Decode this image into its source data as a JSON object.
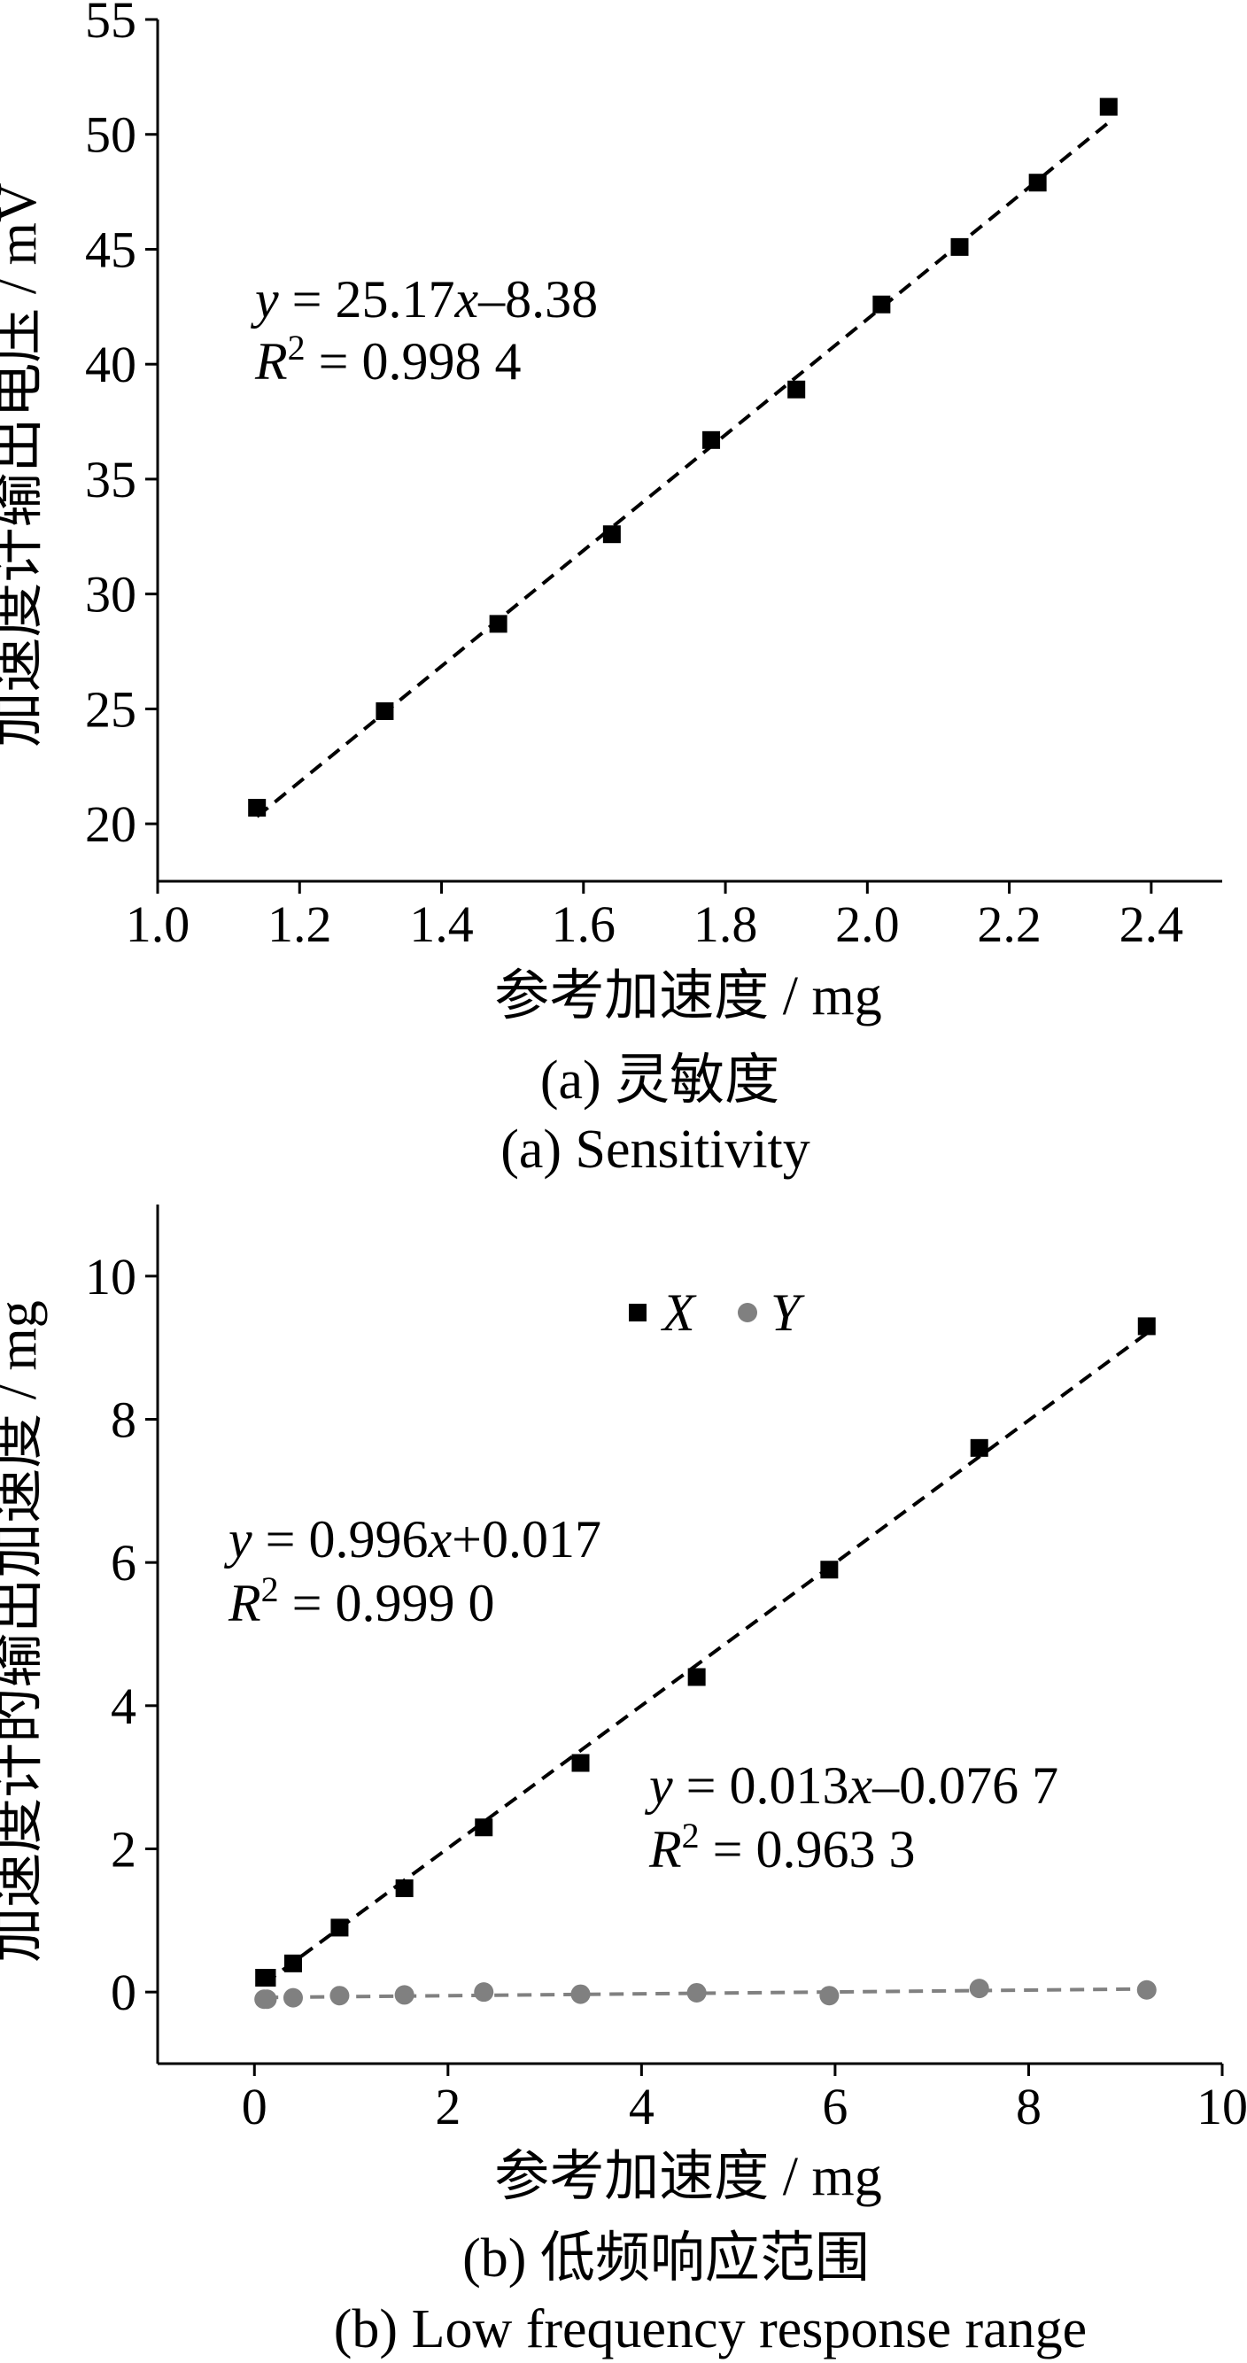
{
  "chart_data": [
    {
      "type": "scatter",
      "caption_cn": "(a) 灵敏度",
      "caption_en": "(a) Sensitivity",
      "xlabel": "参考加速度 / mg",
      "ylabel": "加速度计输出电压 / mV",
      "xlim": [
        1.0,
        2.5
      ],
      "ylim": [
        17.5,
        55
      ],
      "xticks": [
        1.0,
        1.2,
        1.4,
        1.6,
        1.8,
        2.0,
        2.2,
        2.4
      ],
      "xtick_labels": [
        "1.0",
        "1.2",
        "1.4",
        "1.6",
        "1.8",
        "2.0",
        "2.2",
        "2.4"
      ],
      "yticks": [
        20,
        25,
        30,
        35,
        40,
        45,
        50,
        55
      ],
      "ytick_labels": [
        "20",
        "25",
        "30",
        "35",
        "40",
        "45",
        "50",
        "55"
      ],
      "series": [
        {
          "marker": "square",
          "color": "#000000",
          "x": [
            1.14,
            1.32,
            1.48,
            1.64,
            1.78,
            1.9,
            2.02,
            2.13,
            2.24,
            2.34
          ],
          "y": [
            20.7,
            24.9,
            28.7,
            32.6,
            36.7,
            38.9,
            42.6,
            45.1,
            47.9,
            51.2
          ],
          "fit": {
            "slope": 25.17,
            "intercept": -8.38,
            "x_range": [
              1.14,
              2.34
            ]
          }
        }
      ],
      "annotations": [
        {
          "line1": {
            "v": "y",
            "rest1": " = 25.17",
            "v2": "x",
            "rest2": "–8.38"
          },
          "line2": {
            "v": "R",
            "sup": "2",
            "rest": " = 0.998 4"
          }
        }
      ],
      "grid": false
    },
    {
      "type": "scatter",
      "caption_cn": "(b) 低频响应范围",
      "caption_en": "(b) Low frequency response range",
      "xlabel": "参考加速度 / mg",
      "ylabel": "加速度计的输出加速度 / mg",
      "xlim": [
        -1,
        10
      ],
      "ylim": [
        -1,
        11
      ],
      "xticks": [
        0,
        2,
        4,
        6,
        8,
        10
      ],
      "xtick_labels": [
        "0",
        "2",
        "4",
        "6",
        "8",
        "10"
      ],
      "yticks": [
        0,
        2,
        4,
        6,
        8,
        10
      ],
      "ytick_labels": [
        "0",
        "2",
        "4",
        "6",
        "8",
        "10"
      ],
      "legend": {
        "position": "top-center",
        "entries": [
          "X",
          "Y"
        ]
      },
      "series": [
        {
          "name": "X",
          "marker": "square",
          "color": "#000000",
          "x": [
            0.1,
            0.13,
            0.4,
            0.88,
            1.55,
            2.37,
            3.37,
            4.57,
            5.94,
            7.49,
            9.22
          ],
          "y": [
            0.2,
            0.2,
            0.4,
            0.9,
            1.45,
            2.3,
            3.2,
            4.4,
            5.9,
            7.6,
            9.3
          ],
          "fit": {
            "slope": 0.996,
            "intercept": 0.017,
            "x_range": [
              0.1,
              9.22
            ]
          }
        },
        {
          "name": "Y",
          "marker": "circle",
          "color": "#808080",
          "x": [
            0.1,
            0.13,
            0.4,
            0.88,
            1.55,
            2.37,
            3.37,
            4.57,
            5.94,
            7.49,
            9.22
          ],
          "y": [
            -0.1,
            -0.1,
            -0.08,
            -0.05,
            -0.04,
            0.0,
            -0.03,
            -0.01,
            -0.05,
            0.05,
            0.03
          ],
          "fit": {
            "slope": 0.013,
            "intercept": -0.0767,
            "x_range": [
              0.1,
              9.22
            ]
          }
        }
      ],
      "annotations": [
        {
          "line1": {
            "v": "y",
            "rest1": " = 0.996",
            "v2": "x",
            "rest2": "+0.017"
          },
          "line2": {
            "v": "R",
            "sup": "2",
            "rest": " = 0.999 0"
          }
        },
        {
          "line1": {
            "v": "y",
            "rest1": " = 0.013",
            "v2": "x",
            "rest2": "–0.076 7"
          },
          "line2": {
            "v": "R",
            "sup": "2",
            "rest": " = 0.963 3"
          }
        }
      ],
      "grid": false
    }
  ]
}
